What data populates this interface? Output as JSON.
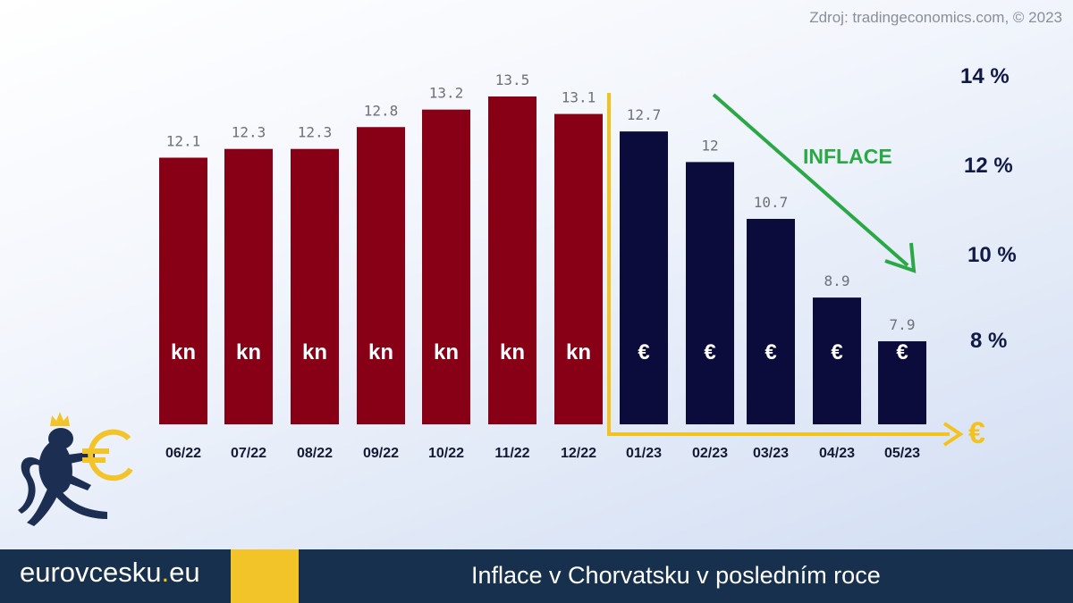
{
  "source": "Zdroj: tradingeconomics.com, © 2023",
  "scale_labels": [
    "14 %",
    "12 %",
    "10 %",
    "8 %"
  ],
  "trend_label": "INFLACE",
  "currency_axis_symbol": "€",
  "footer": {
    "brand_prefix": "eurovcesku",
    "brand_dot": ".",
    "brand_suffix": "eu",
    "title": "Inflace v Chorvatsku v posledním roce"
  },
  "colors": {
    "kuna_bars": "#870016",
    "euro_bars": "#0b0c3c",
    "axis": "#f4c21c",
    "trend_arrow": "#2aa845",
    "footer_bg": "#17304d",
    "footer_accent": "#f3c42a"
  },
  "chart_data": {
    "type": "bar",
    "title": "Inflace v Chorvatsku v posledním roce",
    "categories": [
      "06/22",
      "07/22",
      "08/22",
      "09/22",
      "10/22",
      "11/22",
      "12/22",
      "01/23",
      "02/23",
      "03/23",
      "04/23",
      "05/23"
    ],
    "values": [
      12.1,
      12.3,
      12.3,
      12.8,
      13.2,
      13.5,
      13.1,
      12.7,
      12,
      10.7,
      8.9,
      7.9
    ],
    "value_labels": [
      "12.1",
      "12.3",
      "12.3",
      "12.8",
      "13.2",
      "13.5",
      "13.1",
      "12.7",
      "12",
      "10.7",
      "8.9",
      "7.9"
    ],
    "currency": [
      "kn",
      "kn",
      "kn",
      "kn",
      "kn",
      "kn",
      "kn",
      "€",
      "€",
      "€",
      "€",
      "€"
    ],
    "xlabel": "",
    "ylabel": "",
    "ylim": [
      6,
      14
    ],
    "grid": false,
    "legend": "none"
  }
}
